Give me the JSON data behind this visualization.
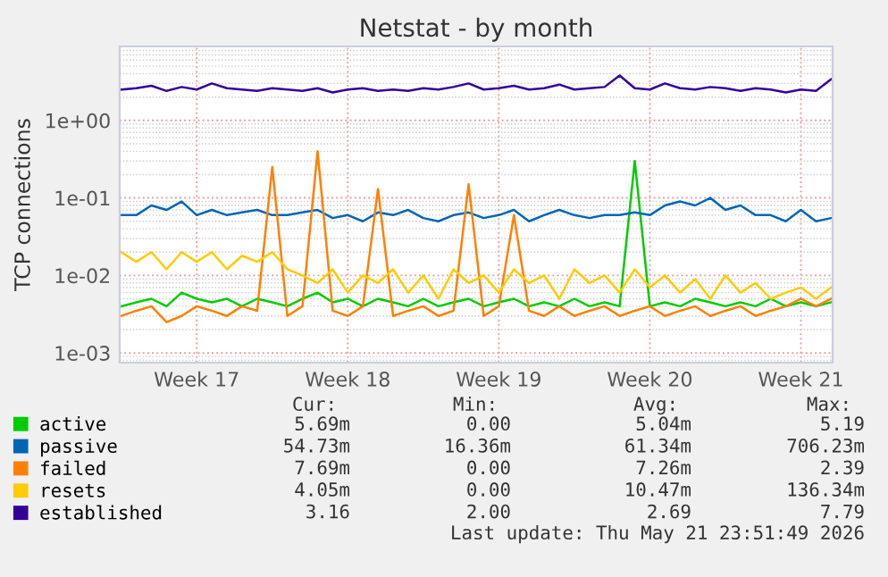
{
  "chart_data": {
    "type": "line",
    "title": "Netstat - by month",
    "ylabel": "TCP connections",
    "categories": [
      null,
      null,
      null,
      null,
      null,
      "Week 17",
      null,
      null,
      null,
      null,
      null,
      null,
      null,
      null,
      null,
      "Week 18",
      null,
      null,
      null,
      null,
      null,
      null,
      null,
      null,
      null,
      "Week 19",
      null,
      null,
      null,
      null,
      null,
      null,
      null,
      null,
      null,
      "Week 20",
      null,
      null,
      null,
      null,
      null,
      null,
      null,
      null,
      null,
      "Week 21",
      null,
      null
    ],
    "series": [
      {
        "name": "active",
        "color": "#00cc00",
        "values": [
          0.004,
          0.0045,
          0.005,
          0.004,
          0.006,
          0.005,
          0.0045,
          0.005,
          0.004,
          0.005,
          0.0045,
          0.004,
          0.005,
          0.006,
          0.0045,
          0.005,
          0.004,
          0.005,
          0.0045,
          0.004,
          0.005,
          0.004,
          0.0045,
          0.005,
          0.004,
          0.0045,
          0.005,
          0.004,
          0.0045,
          0.004,
          0.005,
          0.004,
          0.0045,
          0.004,
          0.3,
          0.004,
          0.0045,
          0.004,
          0.005,
          0.0045,
          0.004,
          0.0045,
          0.004,
          0.005,
          0.004,
          0.0045,
          0.004,
          0.0045
        ]
      },
      {
        "name": "passive",
        "color": "#0066b3",
        "values": [
          0.06,
          0.06,
          0.08,
          0.07,
          0.09,
          0.06,
          0.07,
          0.06,
          0.065,
          0.07,
          0.06,
          0.06,
          0.065,
          0.07,
          0.055,
          0.06,
          0.05,
          0.065,
          0.06,
          0.07,
          0.055,
          0.05,
          0.06,
          0.065,
          0.055,
          0.06,
          0.07,
          0.05,
          0.06,
          0.07,
          0.06,
          0.055,
          0.06,
          0.06,
          0.065,
          0.06,
          0.08,
          0.09,
          0.08,
          0.1,
          0.07,
          0.08,
          0.06,
          0.06,
          0.05,
          0.07,
          0.05,
          0.055
        ]
      },
      {
        "name": "failed",
        "color": "#ff8000",
        "values": [
          0.003,
          0.0035,
          0.004,
          0.0025,
          0.003,
          0.004,
          0.0035,
          0.003,
          0.004,
          0.0035,
          0.25,
          0.003,
          0.004,
          0.4,
          0.0035,
          0.003,
          0.004,
          0.13,
          0.003,
          0.0035,
          0.004,
          0.003,
          0.0035,
          0.15,
          0.003,
          0.004,
          0.06,
          0.0035,
          0.003,
          0.004,
          0.003,
          0.0035,
          0.004,
          0.003,
          0.0035,
          0.004,
          0.003,
          0.0035,
          0.004,
          0.003,
          0.0035,
          0.004,
          0.003,
          0.0035,
          0.004,
          0.005,
          0.004,
          0.005
        ]
      },
      {
        "name": "resets",
        "color": "#ffcc00",
        "values": [
          0.02,
          0.015,
          0.02,
          0.012,
          0.02,
          0.015,
          0.02,
          0.012,
          0.018,
          0.015,
          0.02,
          0.012,
          0.01,
          0.008,
          0.012,
          0.006,
          0.01,
          0.008,
          0.012,
          0.006,
          0.01,
          0.005,
          0.012,
          0.008,
          0.01,
          0.006,
          0.012,
          0.008,
          0.01,
          0.005,
          0.012,
          0.008,
          0.01,
          0.006,
          0.012,
          0.007,
          0.01,
          0.006,
          0.009,
          0.005,
          0.01,
          0.006,
          0.008,
          0.005,
          0.006,
          0.007,
          0.005,
          0.007
        ]
      },
      {
        "name": "established",
        "color": "#330099",
        "values": [
          2.5,
          2.6,
          2.8,
          2.4,
          2.7,
          2.5,
          3.0,
          2.6,
          2.5,
          2.4,
          2.6,
          2.5,
          2.4,
          2.6,
          2.3,
          2.5,
          2.6,
          2.4,
          2.5,
          2.4,
          2.6,
          2.5,
          2.7,
          3.0,
          2.5,
          2.6,
          2.8,
          2.5,
          2.6,
          2.9,
          2.5,
          2.6,
          2.7,
          3.8,
          2.6,
          2.5,
          3.0,
          2.6,
          2.5,
          2.7,
          2.6,
          2.4,
          2.6,
          2.5,
          2.3,
          2.5,
          2.4,
          3.4
        ]
      }
    ],
    "log": "y",
    "ylim": [
      0.00075,
      9
    ],
    "yticks": [
      {
        "value": 0.001,
        "label": "1e-03"
      },
      {
        "value": 0.01,
        "label": "1e-02"
      },
      {
        "value": 0.1,
        "label": "1e-01"
      },
      {
        "value": 1,
        "label": "1e+00"
      }
    ],
    "grid": true,
    "legend": "bottom left",
    "annotations": [
      "Cur:",
      "Min:",
      "Avg:",
      "Max:",
      "5.69m",
      "0.00",
      "5.04m",
      "5.19",
      "54.73m",
      "16.36m",
      "61.34m",
      "706.23m",
      "7.69m",
      "0.00",
      "7.26m",
      "2.39",
      "4.05m",
      "0.00",
      "10.47m",
      "136.34m",
      "3.16",
      "2.00",
      "2.69",
      "7.79",
      "Last update: Thu May 21 23:51:49 2026"
    ]
  }
}
